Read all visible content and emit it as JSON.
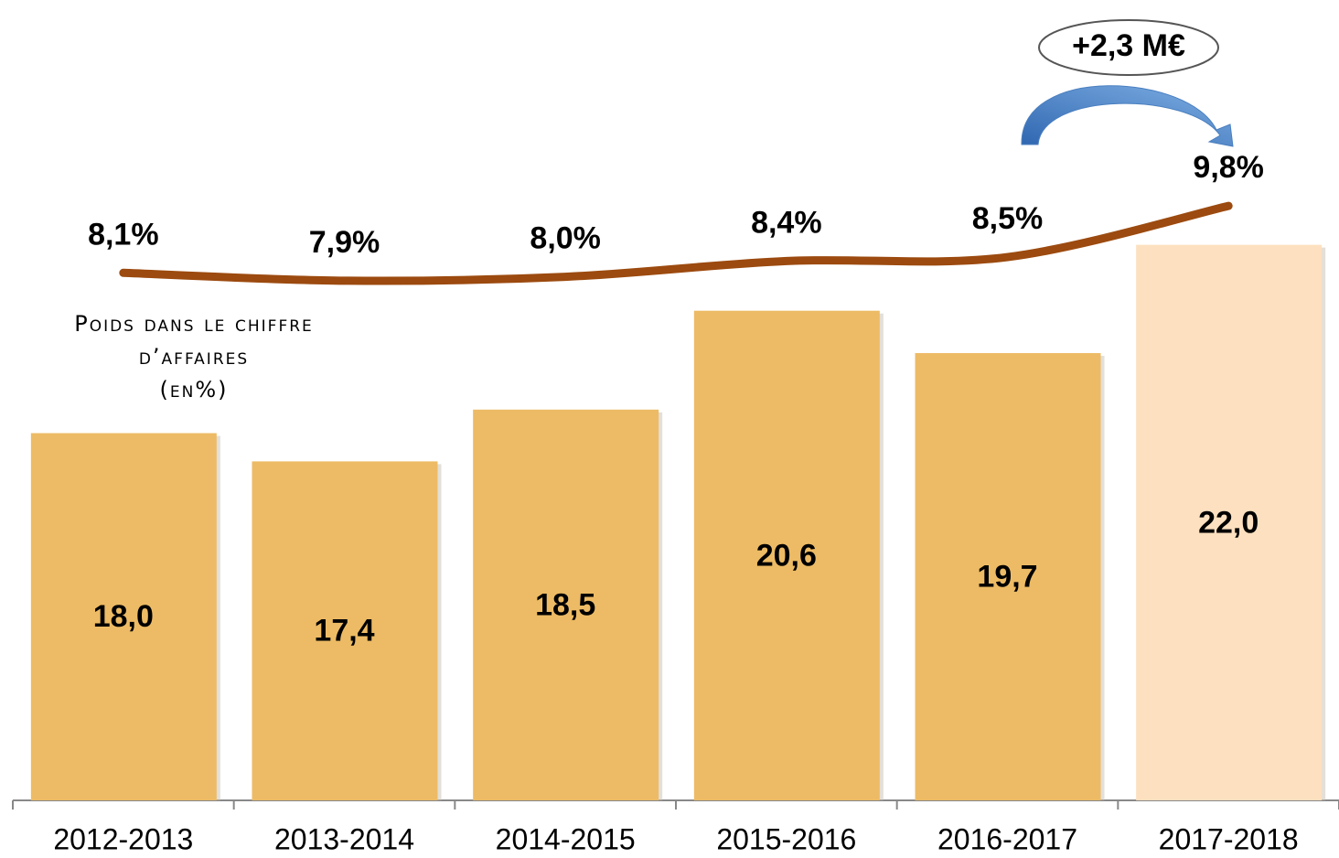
{
  "chart_data": {
    "type": "bar",
    "categories": [
      "2012-2013",
      "2013-2014",
      "2014-2015",
      "2015-2016",
      "2016-2017",
      "2017-2018"
    ],
    "series": [
      {
        "type": "bar",
        "color": "#edbb65",
        "colors": [
          "#edbb65",
          "#edbb65",
          "#edbb65",
          "#edbb65",
          "#edbb65",
          "#fde0bf"
        ],
        "values": [
          18.0,
          17.4,
          18.5,
          20.6,
          19.7,
          22.0
        ],
        "value_labels": [
          "18,0",
          "17,4",
          "18,5",
          "20,6",
          "19,7",
          "22,0"
        ]
      },
      {
        "type": "line",
        "axis": "y2",
        "color": "#9c4a0f",
        "values": [
          8.1,
          7.9,
          8.0,
          8.4,
          8.5,
          9.8
        ],
        "value_labels": [
          "8,1%",
          "7,9%",
          "8,0%",
          "8,4%",
          "8,5%",
          "9,8%"
        ]
      }
    ],
    "y2_label": [
      "Poids dans le chiffre",
      "d’affaires",
      "(en%)"
    ],
    "annotation": "+2,3 M€",
    "ylim": [
      10.2,
      27.2
    ],
    "y2lim": [
      -5.3,
      15.03
    ]
  }
}
